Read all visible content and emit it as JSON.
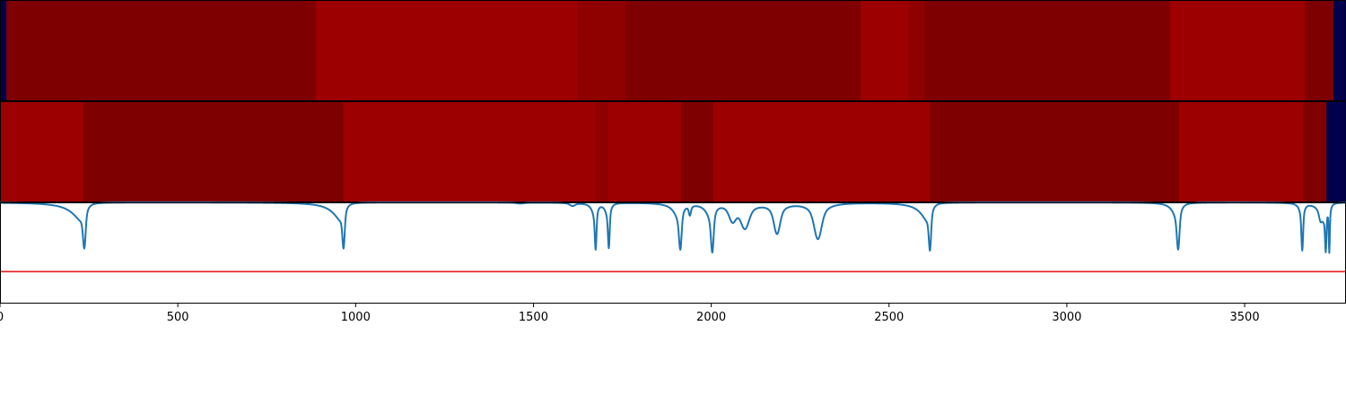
{
  "colors": {
    "background": "#ffffff",
    "frame": "#000000",
    "spectrum_line": "#1f77b4",
    "threshold_line": "#e41a1c",
    "padding_band": "#00004c",
    "dark_band": "#7f0000",
    "medium_band": "#8f0000",
    "bright_band": "#9c0000"
  },
  "chart_data": [
    {
      "type": "heatmap",
      "orientation": "1d-strip",
      "xlim": [
        0,
        3785
      ],
      "segments": [
        {
          "x0": 0,
          "x1": 18,
          "color": "#00004c"
        },
        {
          "x0": 18,
          "x1": 888,
          "color": "#7f0000"
        },
        {
          "x0": 888,
          "x1": 1625,
          "color": "#9c0000"
        },
        {
          "x0": 1625,
          "x1": 1760,
          "color": "#8f0000"
        },
        {
          "x0": 1760,
          "x1": 2420,
          "color": "#7f0000"
        },
        {
          "x0": 2420,
          "x1": 2555,
          "color": "#9c0000"
        },
        {
          "x0": 2555,
          "x1": 2600,
          "color": "#8f0000"
        },
        {
          "x0": 2600,
          "x1": 3290,
          "color": "#7f0000"
        },
        {
          "x0": 3290,
          "x1": 3670,
          "color": "#9c0000"
        },
        {
          "x0": 3670,
          "x1": 3750,
          "color": "#7f0000"
        },
        {
          "x0": 3750,
          "x1": 3785,
          "color": "#00004c"
        }
      ]
    },
    {
      "type": "heatmap",
      "orientation": "1d-strip",
      "xlim": [
        0,
        3785
      ],
      "segments": [
        {
          "x0": 0,
          "x1": 235,
          "color": "#9c0000"
        },
        {
          "x0": 235,
          "x1": 965,
          "color": "#7f0000"
        },
        {
          "x0": 965,
          "x1": 1675,
          "color": "#9c0000"
        },
        {
          "x0": 1675,
          "x1": 1710,
          "color": "#8f0000"
        },
        {
          "x0": 1710,
          "x1": 1915,
          "color": "#9c0000"
        },
        {
          "x0": 1915,
          "x1": 2005,
          "color": "#7f0000"
        },
        {
          "x0": 2005,
          "x1": 2615,
          "color": "#9c0000"
        },
        {
          "x0": 2615,
          "x1": 3315,
          "color": "#7f0000"
        },
        {
          "x0": 3315,
          "x1": 3665,
          "color": "#9c0000"
        },
        {
          "x0": 3665,
          "x1": 3730,
          "color": "#7f0000"
        },
        {
          "x0": 3730,
          "x1": 3785,
          "color": "#00004c"
        }
      ]
    },
    {
      "type": "line",
      "xlim": [
        0,
        3785
      ],
      "ylim": [
        0,
        1
      ],
      "xticks": [
        0,
        500,
        1000,
        1500,
        2000,
        2500,
        3000,
        3500
      ],
      "threshold": 0.31,
      "baseline": 1.0,
      "series": [
        {
          "color": "#1f77b4",
          "peaks": [
            {
              "center": 237,
              "depth": 0.46,
              "width": 8,
              "left_width": 35
            },
            {
              "center": 966,
              "depth": 0.46,
              "width": 7,
              "left_width": 30
            },
            {
              "center": 1463,
              "depth": 0.01,
              "width": 20,
              "left_width": 20
            },
            {
              "center": 1610,
              "depth": 0.03,
              "width": 15,
              "left_width": 15
            },
            {
              "center": 1675,
              "depth": 0.46,
              "width": 5,
              "left_width": 8
            },
            {
              "center": 1712,
              "depth": 0.45,
              "width": 5,
              "left_width": 8
            },
            {
              "center": 1913,
              "depth": 0.46,
              "width": 8,
              "left_width": 16
            },
            {
              "center": 1940,
              "depth": 0.1,
              "width": 6,
              "left_width": 6
            },
            {
              "center": 2003,
              "depth": 0.48,
              "width": 8,
              "left_width": 14
            },
            {
              "center": 2060,
              "depth": 0.16,
              "width": 20,
              "left_width": 20
            },
            {
              "center": 2095,
              "depth": 0.24,
              "width": 24,
              "left_width": 24
            },
            {
              "center": 2185,
              "depth": 0.3,
              "width": 18,
              "left_width": 18
            },
            {
              "center": 2300,
              "depth": 0.36,
              "width": 22,
              "left_width": 22
            },
            {
              "center": 2615,
              "depth": 0.48,
              "width": 7,
              "left_width": 26
            },
            {
              "center": 3313,
              "depth": 0.47,
              "width": 8,
              "left_width": 14
            },
            {
              "center": 3662,
              "depth": 0.47,
              "width": 5,
              "left_width": 6
            },
            {
              "center": 3713,
              "depth": 0.09,
              "width": 8,
              "left_width": 8
            },
            {
              "center": 3728,
              "depth": 0.47,
              "width": 4,
              "left_width": 14
            },
            {
              "center": 3738,
              "depth": 0.47,
              "width": 3,
              "left_width": 3
            }
          ]
        }
      ]
    }
  ]
}
